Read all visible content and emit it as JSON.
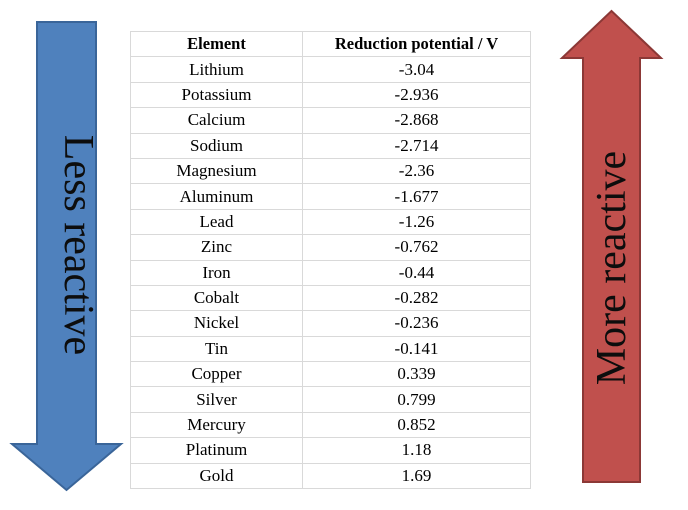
{
  "left_arrow": {
    "label": "Less reactive",
    "direction": "down",
    "color": "#4f81bd"
  },
  "right_arrow": {
    "label": "More reactive",
    "direction": "up",
    "color": "#c0504d"
  },
  "table": {
    "headers": [
      "Element",
      "Reduction potential / V"
    ],
    "rows": [
      [
        "Lithium",
        "-3.04"
      ],
      [
        "Potassium",
        "-2.936"
      ],
      [
        "Calcium",
        "-2.868"
      ],
      [
        "Sodium",
        "-2.714"
      ],
      [
        "Magnesium",
        "-2.36"
      ],
      [
        "Aluminum",
        "-1.677"
      ],
      [
        "Lead",
        "-1.26"
      ],
      [
        "Zinc",
        "-0.762"
      ],
      [
        "Iron",
        "-0.44"
      ],
      [
        "Cobalt",
        "-0.282"
      ],
      [
        "Nickel",
        "-0.236"
      ],
      [
        "Tin",
        "-0.141"
      ],
      [
        "Copper",
        "0.339"
      ],
      [
        "Silver",
        "0.799"
      ],
      [
        "Mercury",
        "0.852"
      ],
      [
        "Platinum",
        "1.18"
      ],
      [
        "Gold",
        "1.69"
      ]
    ]
  }
}
